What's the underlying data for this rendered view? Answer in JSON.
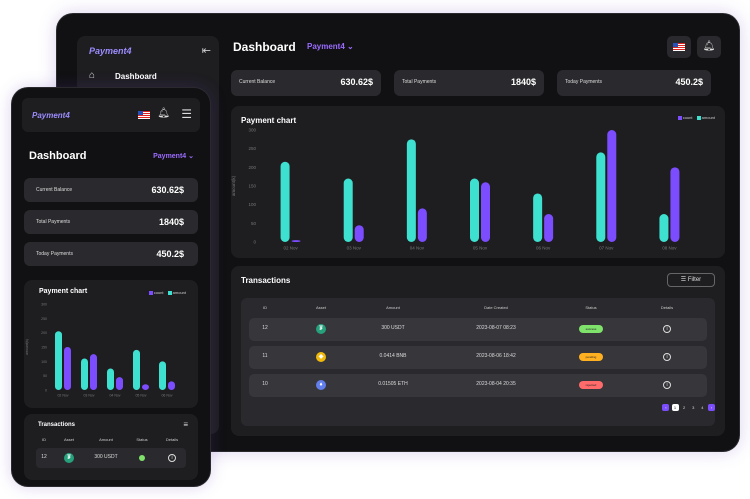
{
  "app": {
    "logo_text": "Payment4",
    "page_title": "Dashboard",
    "account_label": "Payment4 ⌄"
  },
  "sidebar": {
    "home_label": "Dashboard"
  },
  "stats": [
    {
      "label": "Current Balance",
      "value": "630.62$"
    },
    {
      "label": "Total Payments",
      "value": "1840$"
    },
    {
      "label": "Today Payments",
      "value": "450.2$"
    }
  ],
  "payment_chart": {
    "title": "Payment chart",
    "legend": [
      {
        "name": "count",
        "color": "#7c4dff"
      },
      {
        "name": "amount",
        "color": "#3ee0d0"
      }
    ]
  },
  "chart_data": {
    "type": "bar",
    "title": "Payment chart",
    "categories": [
      "02 Nov",
      "03 Nov",
      "04 Nov",
      "05 Nov",
      "06 Nov",
      "07 Nov",
      "08 Nov"
    ],
    "series": [
      {
        "name": "count",
        "values": [
          5,
          45,
          90,
          160,
          75,
          300,
          200
        ]
      },
      {
        "name": "amount",
        "values": [
          215,
          170,
          275,
          170,
          130,
          240,
          75
        ]
      }
    ],
    "yticks": [
      "300",
      "250",
      "200",
      "150",
      "100",
      "50",
      "0"
    ],
    "ylim": [
      0,
      300
    ],
    "ylabel": "amount(k)"
  },
  "mobile_chart": {
    "categories": [
      "02 Nov",
      "03 Nov",
      "04 Nov",
      "05 Nov",
      "06 Nov"
    ],
    "series": [
      {
        "name": "count",
        "values": [
          150,
          125,
          45,
          20,
          30
        ]
      },
      {
        "name": "amount",
        "values": [
          205,
          110,
          75,
          140,
          100
        ]
      }
    ],
    "yticks": [
      "300",
      "250",
      "200",
      "150",
      "100",
      "50",
      "0"
    ],
    "ylabel": "amount(k)"
  },
  "transactions": {
    "title": "Transactions",
    "filter_label": "Filter",
    "columns": [
      "ID",
      "Asset",
      "Amount",
      "Date Created",
      "Status",
      "Details"
    ],
    "rows": [
      {
        "id": "12",
        "asset_icon": "tether-icon",
        "amount": "300 USDT",
        "date": "2023-08-07 08:23",
        "status": "success",
        "status_color": "#7ee26b"
      },
      {
        "id": "11",
        "asset_icon": "bnb-icon",
        "amount": "0.0414 BNB",
        "date": "2023-08-06 18:42",
        "status": "pending",
        "status_color": "#ffb020"
      },
      {
        "id": "10",
        "asset_icon": "ethereum-icon",
        "amount": "0.01505 ETH",
        "date": "2023-08-04 20:35",
        "status": "rejected",
        "status_color": "#ff6b6b"
      }
    ],
    "pages": [
      "1",
      "2",
      "3",
      "4"
    ]
  },
  "mobile_transactions": {
    "title": "Transactions",
    "columns": [
      "ID",
      "Asset",
      "Amount",
      "Status",
      "Details"
    ],
    "row": {
      "id": "12",
      "amount": "300 USDT",
      "status_color": "#7ee26b"
    }
  }
}
